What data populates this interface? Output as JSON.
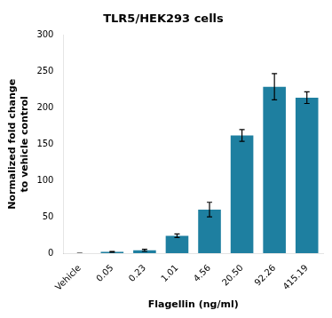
{
  "chart_data": {
    "type": "bar",
    "title": "TLR5/HEK293 cells",
    "xlabel": "Flagellin (ng/ml)",
    "ylabel": "Normalized fold change\nto vehicle control",
    "categories": [
      "Vehicle",
      "0.05",
      "0.23",
      "1.01",
      "4.56",
      "20.50",
      "92.26",
      "415.19"
    ],
    "values": [
      0,
      2,
      4,
      24,
      60,
      162,
      229,
      214
    ],
    "errors": [
      0,
      0.5,
      1.5,
      2.5,
      10,
      8,
      18,
      8
    ],
    "color": "#1e7fa0",
    "ylim": [
      0,
      300
    ],
    "yticks": [
      0,
      50,
      100,
      150,
      200,
      250,
      300
    ],
    "grid": false
  }
}
